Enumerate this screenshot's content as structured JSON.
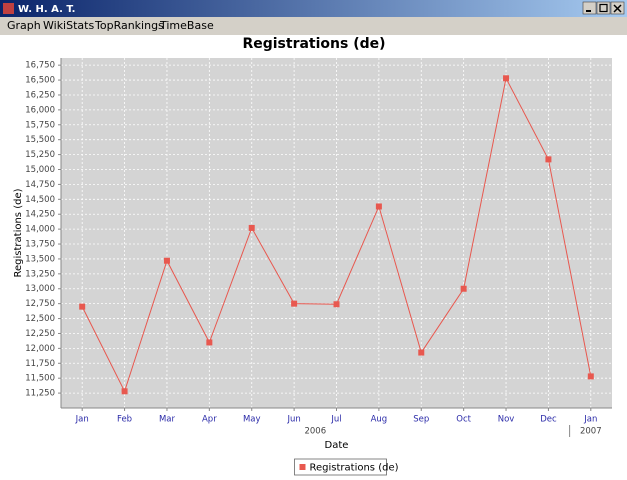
{
  "window": {
    "title": "W. H. A. T."
  },
  "menu": [
    "Graph",
    "WikiStats",
    "TopRankings",
    "TimeBase"
  ],
  "chart_data": {
    "type": "line",
    "title": "Registrations (de)",
    "x_label": "Date",
    "y_label": "Registrations (de)",
    "categories": [
      "Jan",
      "Feb",
      "Mar",
      "Apr",
      "May",
      "Jun",
      "Jul",
      "Aug",
      "Sep",
      "Oct",
      "Nov",
      "Dec",
      "Jan"
    ],
    "x_group_labels": [
      "2006",
      "2007"
    ],
    "series": [
      {
        "name": "Registrations (de)",
        "color": "#e8584f",
        "values": [
          12700,
          11280,
          13470,
          12100,
          14020,
          12750,
          12740,
          14380,
          11930,
          13000,
          16530,
          15170,
          11530
        ]
      }
    ],
    "ylim": [
      11000,
      16870
    ],
    "yticks": [
      {
        "value": 11250,
        "label": "11,250"
      },
      {
        "value": 11500,
        "label": "11,500"
      },
      {
        "value": 11750,
        "label": "11,750"
      },
      {
        "value": 12000,
        "label": "12,000"
      },
      {
        "value": 12250,
        "label": "12,250"
      },
      {
        "value": 12500,
        "label": "12,500"
      },
      {
        "value": 12750,
        "label": "12,750"
      },
      {
        "value": 13000,
        "label": "13,000"
      },
      {
        "value": 13250,
        "label": "13,250"
      },
      {
        "value": 13500,
        "label": "13,500"
      },
      {
        "value": 13750,
        "label": "13,750"
      },
      {
        "value": 14000,
        "label": "14,000"
      },
      {
        "value": 14250,
        "label": "14,250"
      },
      {
        "value": 14500,
        "label": "14,500"
      },
      {
        "value": 14750,
        "label": "14,750"
      },
      {
        "value": 15000,
        "label": "15,000"
      },
      {
        "value": 15250,
        "label": "15,250"
      },
      {
        "value": 15500,
        "label": "15,500"
      },
      {
        "value": 15750,
        "label": "15,750"
      },
      {
        "value": 16000,
        "label": "16,000"
      },
      {
        "value": 16250,
        "label": "16,250"
      },
      {
        "value": 16500,
        "label": "16,500"
      },
      {
        "value": 16750,
        "label": "16,750"
      }
    ],
    "grid": true,
    "legend": "bottom"
  }
}
